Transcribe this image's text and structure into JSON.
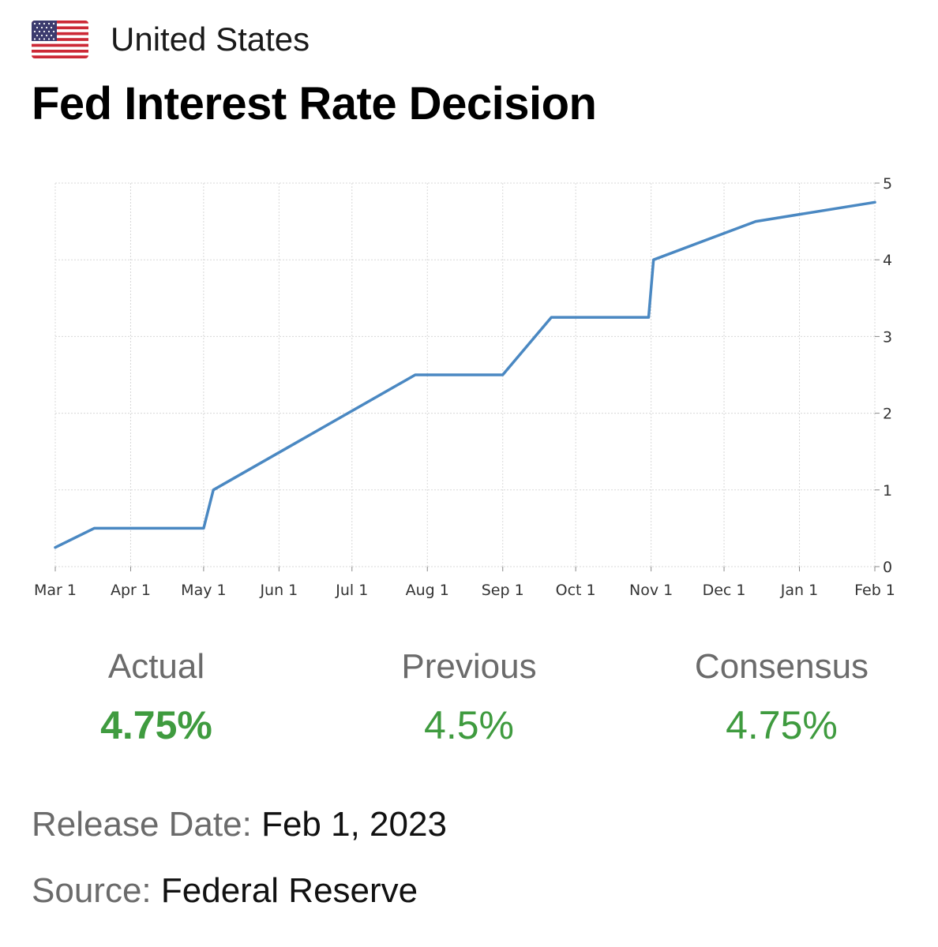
{
  "header": {
    "country": "United States",
    "flag_icon": "us-flag-icon"
  },
  "title": "Fed Interest Rate Decision",
  "chart_data": {
    "type": "line",
    "x": [
      "2022-03-01",
      "2022-03-17",
      "2022-05-01",
      "2022-05-05",
      "2022-07-27",
      "2022-09-01",
      "2022-09-21",
      "2022-10-31",
      "2022-11-02",
      "2022-12-14",
      "2023-02-01"
    ],
    "y": [
      0.25,
      0.5,
      0.5,
      1.0,
      2.5,
      2.5,
      3.25,
      3.25,
      4.0,
      4.5,
      4.75
    ],
    "xticks": [
      "Mar 1",
      "Apr 1",
      "May 1",
      "Jun 1",
      "Jul 1",
      "Aug 1",
      "Sep 1",
      "Oct 1",
      "Nov 1",
      "Dec 1",
      "Jan 1",
      "Feb 1"
    ],
    "xtick_dates": [
      "2022-03-01",
      "2022-04-01",
      "2022-05-01",
      "2022-06-01",
      "2022-07-01",
      "2022-08-01",
      "2022-09-01",
      "2022-10-01",
      "2022-11-01",
      "2022-12-01",
      "2023-01-01",
      "2023-02-01"
    ],
    "yticks": [
      0,
      1,
      2,
      3,
      4,
      5
    ],
    "ylim": [
      0,
      5
    ],
    "xlim": [
      "2022-03-01",
      "2023-02-01"
    ],
    "grid": true,
    "line_color": "#4a88c2",
    "title": "",
    "xlabel": "",
    "ylabel": ""
  },
  "stats": {
    "actual": {
      "label": "Actual",
      "value": "4.75%"
    },
    "previous": {
      "label": "Previous",
      "value": "4.5%"
    },
    "consensus": {
      "label": "Consensus",
      "value": "4.75%"
    }
  },
  "release": {
    "label": "Release Date:",
    "value": "Feb 1, 2023"
  },
  "source": {
    "label": "Source:",
    "value": "Federal Reserve"
  },
  "colors": {
    "value_green": "#3f9b3f",
    "label_gray": "#6b6b6b"
  }
}
